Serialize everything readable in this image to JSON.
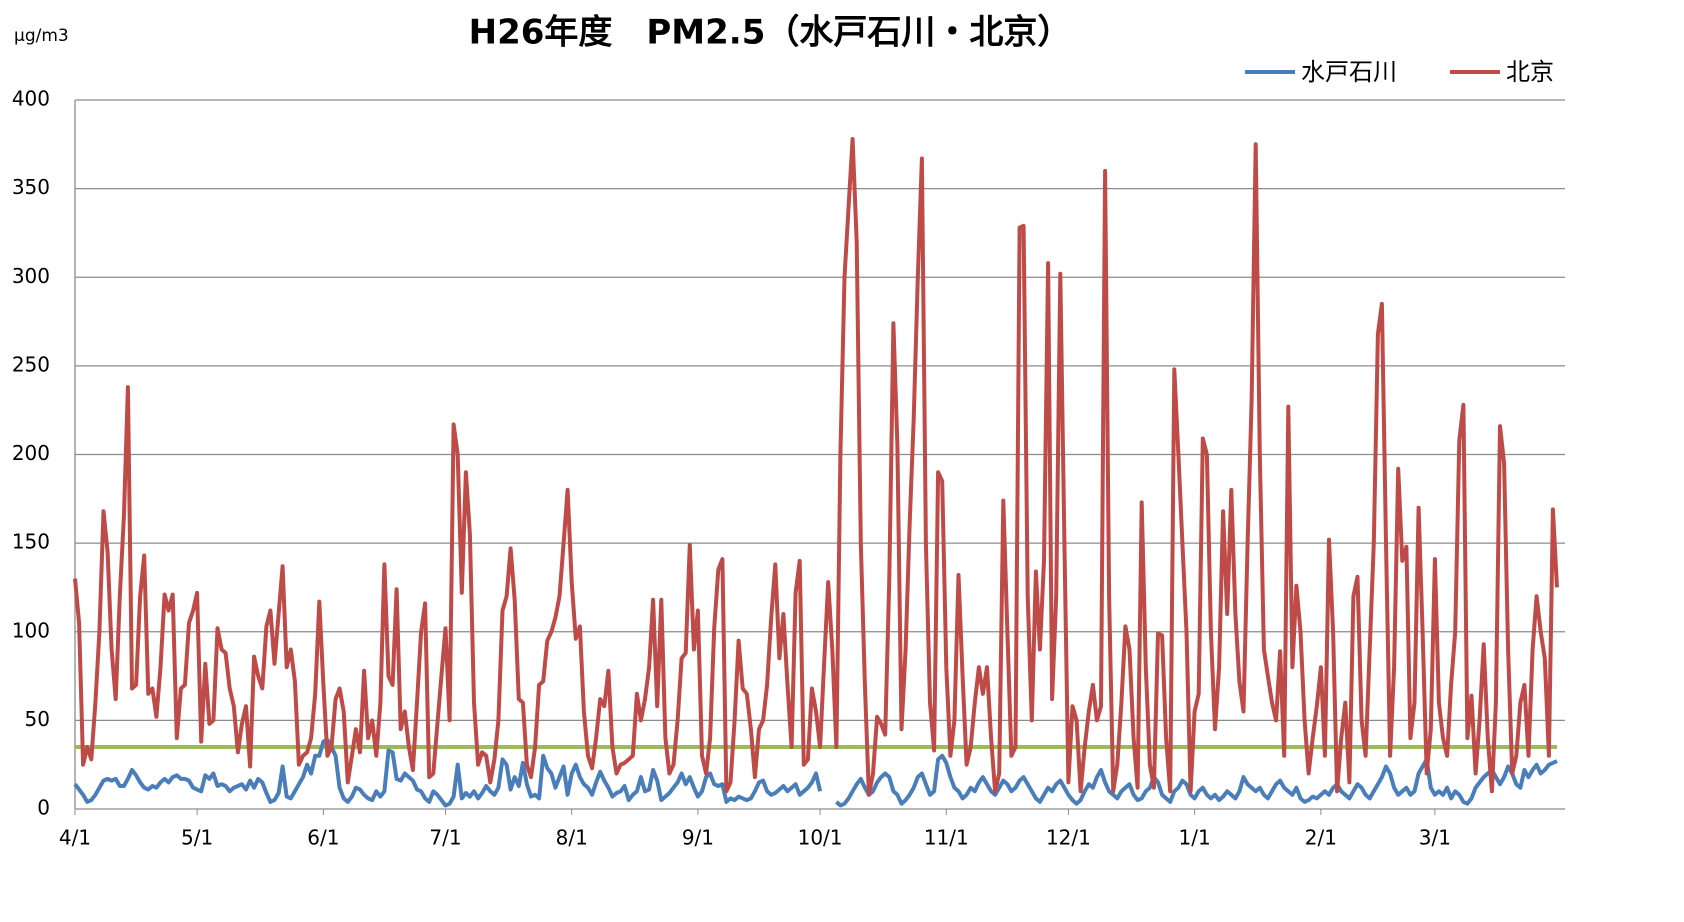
{
  "chart_data": {
    "type": "line",
    "title": "H26年度　PM2.5（水戸石川・北京）",
    "y_unit": "μg/m3",
    "categories": [
      "4/1",
      null,
      null,
      null,
      null,
      null,
      null,
      null,
      null,
      null,
      null,
      null,
      null,
      null,
      null,
      null,
      null,
      null,
      null,
      null,
      null,
      null,
      null,
      null,
      null,
      null,
      null,
      null,
      null,
      null,
      "5/1",
      null,
      null,
      null,
      null,
      null,
      null,
      null,
      null,
      null,
      null,
      null,
      null,
      null,
      null,
      null,
      null,
      null,
      null,
      null,
      null,
      null,
      null,
      null,
      null,
      null,
      null,
      null,
      null,
      null,
      null,
      "6/1",
      null,
      null,
      null,
      null,
      null,
      null,
      null,
      null,
      null,
      null,
      null,
      null,
      null,
      null,
      null,
      null,
      null,
      null,
      null,
      null,
      null,
      null,
      null,
      null,
      null,
      null,
      null,
      null,
      null,
      "7/1",
      null,
      null,
      null,
      null,
      null,
      null,
      null,
      null,
      null,
      null,
      null,
      null,
      null,
      null,
      null,
      null,
      null,
      null,
      null,
      null,
      null,
      null,
      null,
      null,
      null,
      null,
      null,
      null,
      null,
      null,
      "8/1",
      null,
      null,
      null,
      null,
      null,
      null,
      null,
      null,
      null,
      null,
      null,
      null,
      null,
      null,
      null,
      null,
      null,
      null,
      null,
      null,
      null,
      null,
      null,
      null,
      null,
      null,
      null,
      null,
      null,
      null,
      "9/1",
      null,
      null,
      null,
      null,
      null,
      null,
      null,
      null,
      null,
      null,
      null,
      null,
      null,
      null,
      null,
      null,
      null,
      null,
      null,
      null,
      null,
      null,
      null,
      null,
      null,
      null,
      null,
      null,
      null,
      "10/1",
      null,
      null,
      null,
      null,
      null,
      null,
      null,
      null,
      null,
      null,
      null,
      null,
      null,
      null,
      null,
      null,
      null,
      null,
      null,
      null,
      null,
      null,
      null,
      null,
      null,
      null,
      null,
      null,
      null,
      null,
      "11/1",
      null,
      null,
      null,
      null,
      null,
      null,
      null,
      null,
      null,
      null,
      null,
      null,
      null,
      null,
      null,
      null,
      null,
      null,
      null,
      null,
      null,
      null,
      null,
      null,
      null,
      null,
      null,
      null,
      null,
      "12/1",
      null,
      null,
      null,
      null,
      null,
      null,
      null,
      null,
      null,
      null,
      null,
      null,
      null,
      null,
      null,
      null,
      null,
      null,
      null,
      null,
      null,
      null,
      null,
      null,
      null,
      null,
      null,
      null,
      null,
      null,
      "1/1",
      null,
      null,
      null,
      null,
      null,
      null,
      null,
      null,
      null,
      null,
      null,
      null,
      null,
      null,
      null,
      null,
      null,
      null,
      null,
      null,
      null,
      null,
      null,
      null,
      null,
      null,
      null,
      null,
      null,
      null,
      "2/1",
      null,
      null,
      null,
      null,
      null,
      null,
      null,
      null,
      null,
      null,
      null,
      null,
      null,
      null,
      null,
      null,
      null,
      null,
      null,
      null,
      null,
      null,
      null,
      null,
      null,
      null,
      null,
      "3/1",
      null,
      null,
      null,
      null,
      null,
      null,
      null,
      null,
      null,
      null,
      null,
      null,
      null,
      null,
      null,
      null,
      null,
      null,
      null,
      null,
      null,
      null,
      null,
      null,
      null,
      null,
      null,
      null,
      null,
      null
    ],
    "series": [
      {
        "name": "水戸石川",
        "color": "#4a7ebb",
        "values": [
          14,
          11,
          8,
          4,
          5,
          8,
          12,
          16,
          17,
          16,
          17,
          13,
          13,
          17,
          22,
          19,
          15,
          12,
          11,
          13,
          12,
          15,
          17,
          15,
          18,
          19,
          17,
          17,
          16,
          12,
          11,
          10,
          19,
          17,
          20,
          13,
          14,
          13,
          10,
          12,
          13,
          14,
          11,
          16,
          12,
          17,
          15,
          9,
          4,
          5,
          9,
          24,
          7,
          6,
          10,
          14,
          18,
          25,
          20,
          30,
          30,
          38,
          39,
          35,
          30,
          12,
          6,
          4,
          7,
          12,
          11,
          8,
          6,
          5,
          10,
          7,
          10,
          33,
          32,
          17,
          16,
          20,
          18,
          16,
          11,
          10,
          6,
          4,
          10,
          8,
          5,
          2,
          3,
          7,
          25,
          6,
          9,
          7,
          10,
          6,
          9,
          13,
          10,
          8,
          12,
          28,
          25,
          11,
          18,
          13,
          26,
          14,
          7,
          8,
          6,
          30,
          23,
          20,
          12,
          18,
          24,
          8,
          20,
          25,
          18,
          14,
          12,
          8,
          15,
          21,
          16,
          12,
          7,
          9,
          10,
          13,
          5,
          8,
          10,
          18,
          10,
          11,
          22,
          16,
          5,
          7,
          9,
          12,
          15,
          20,
          14,
          18,
          12,
          7,
          10,
          18,
          20,
          14,
          13,
          14,
          4,
          6,
          5,
          7,
          6,
          5,
          6,
          10,
          15,
          16,
          10,
          8,
          9,
          11,
          13,
          10,
          12,
          14,
          8,
          10,
          12,
          15,
          20,
          10,
          null,
          null,
          null,
          4,
          2,
          3,
          6,
          10,
          14,
          17,
          12,
          8,
          10,
          15,
          18,
          20,
          18,
          10,
          8,
          3,
          5,
          8,
          12,
          18,
          20,
          14,
          8,
          10,
          28,
          30,
          26,
          18,
          12,
          10,
          6,
          8,
          12,
          10,
          15,
          18,
          14,
          10,
          8,
          12,
          16,
          14,
          10,
          12,
          16,
          18,
          14,
          10,
          6,
          4,
          8,
          12,
          10,
          14,
          16,
          12,
          8,
          5,
          3,
          5,
          10,
          14,
          12,
          18,
          22,
          15,
          10,
          8,
          6,
          10,
          12,
          14,
          8,
          5,
          6,
          10,
          12,
          18,
          15,
          8,
          6,
          4,
          10,
          12,
          16,
          14,
          8,
          6,
          10,
          12,
          8,
          6,
          8,
          5,
          7,
          10,
          8,
          6,
          10,
          18,
          14,
          12,
          10,
          12,
          8,
          6,
          10,
          14,
          16,
          12,
          10,
          8,
          12,
          6,
          4,
          5,
          7,
          6,
          8,
          10,
          8,
          12,
          14,
          10,
          8,
          6,
          10,
          14,
          12,
          8,
          6,
          10,
          14,
          18,
          24,
          20,
          12,
          8,
          10,
          12,
          8,
          10,
          20,
          24,
          28,
          12,
          8,
          10,
          8,
          12,
          6,
          10,
          8,
          4,
          3,
          6,
          12,
          15,
          18,
          20,
          22,
          18,
          14,
          18,
          24,
          20,
          14,
          12,
          22,
          18,
          22,
          25,
          20,
          22,
          25,
          26,
          27
        ]
      },
      {
        "name": "北京",
        "color": "#be4b48",
        "values": [
          130,
          105,
          25,
          35,
          28,
          60,
          100,
          168,
          145,
          90,
          62,
          120,
          165,
          238,
          68,
          70,
          120,
          143,
          65,
          68,
          52,
          80,
          121,
          112,
          121,
          40,
          68,
          70,
          105,
          112,
          122,
          38,
          82,
          48,
          50,
          102,
          90,
          88,
          68,
          58,
          32,
          48,
          58,
          24,
          86,
          75,
          68,
          103,
          112,
          82,
          110,
          137,
          80,
          90,
          72,
          25,
          30,
          32,
          40,
          65,
          117,
          70,
          30,
          35,
          62,
          68,
          55,
          15,
          30,
          45,
          32,
          78,
          40,
          50,
          30,
          60,
          138,
          75,
          70,
          124,
          45,
          55,
          35,
          22,
          60,
          100,
          116,
          18,
          20,
          48,
          75,
          102,
          50,
          217,
          200,
          122,
          190,
          155,
          60,
          25,
          32,
          30,
          15,
          28,
          50,
          112,
          120,
          147,
          118,
          62,
          60,
          25,
          18,
          35,
          70,
          72,
          95,
          100,
          108,
          120,
          150,
          180,
          128,
          96,
          103,
          55,
          30,
          23,
          40,
          62,
          58,
          78,
          35,
          20,
          25,
          26,
          28,
          30,
          65,
          50,
          62,
          80,
          118,
          58,
          118,
          40,
          20,
          25,
          50,
          85,
          88,
          149,
          90,
          112,
          30,
          20,
          40,
          102,
          135,
          141,
          10,
          15,
          50,
          95,
          68,
          65,
          45,
          18,
          45,
          50,
          70,
          108,
          138,
          85,
          110,
          70,
          35,
          122,
          140,
          25,
          28,
          68,
          55,
          35,
          82,
          128,
          90,
          35,
          200,
          300,
          340,
          378,
          320,
          150,
          70,
          8,
          20,
          52,
          48,
          42,
          130,
          274,
          205,
          45,
          90,
          160,
          220,
          300,
          367,
          150,
          60,
          33,
          190,
          185,
          80,
          30,
          50,
          132,
          75,
          25,
          35,
          60,
          80,
          65,
          80,
          40,
          10,
          20,
          174,
          100,
          30,
          35,
          328,
          329,
          120,
          50,
          134,
          90,
          140,
          308,
          62,
          120,
          302,
          150,
          15,
          58,
          50,
          10,
          35,
          55,
          70,
          50,
          58,
          360,
          120,
          10,
          25,
          60,
          103,
          90,
          40,
          12,
          173,
          80,
          25,
          12,
          99,
          98,
          40,
          10,
          248,
          200,
          150,
          100,
          10,
          55,
          65,
          209,
          200,
          100,
          45,
          80,
          168,
          110,
          180,
          110,
          72,
          55,
          150,
          230,
          375,
          200,
          90,
          75,
          60,
          50,
          89,
          30,
          227,
          80,
          126,
          100,
          50,
          20,
          40,
          58,
          80,
          30,
          152,
          100,
          10,
          40,
          60,
          15,
          120,
          131,
          50,
          30,
          90,
          150,
          268,
          285,
          150,
          30,
          80,
          192,
          140,
          148,
          40,
          60,
          170,
          100,
          20,
          45,
          141,
          60,
          40,
          30,
          70,
          100,
          208,
          228,
          40,
          64,
          20,
          50,
          93,
          40,
          10,
          60,
          216,
          195,
          90,
          20,
          30,
          60,
          70,
          30,
          90,
          120,
          100,
          85,
          30,
          169,
          125
        ]
      }
    ],
    "reference_line": {
      "value": 35,
      "color": "#9bbb59"
    },
    "ylim": [
      0,
      400
    ],
    "yticks": [
      0,
      50,
      100,
      150,
      200,
      250,
      300,
      350,
      400
    ],
    "grid": true,
    "legend": "top-right"
  }
}
